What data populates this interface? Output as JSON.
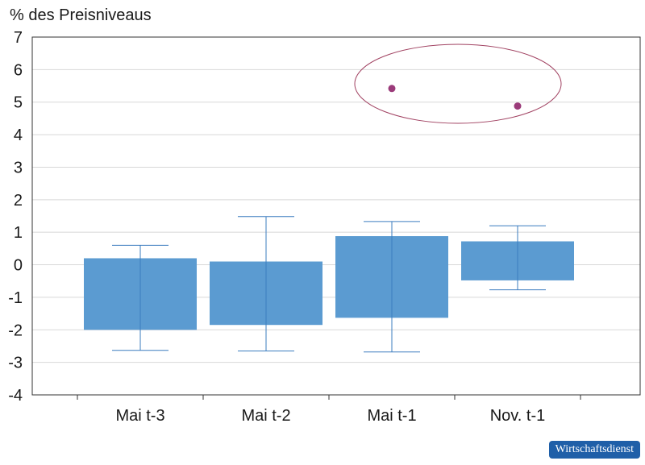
{
  "chart_data": {
    "type": "bar",
    "ylabel": "% des Preisniveaus",
    "ylim": [
      -4,
      7
    ],
    "yticks": [
      7,
      6,
      5,
      4,
      3,
      2,
      1,
      0,
      -1,
      -2,
      -3,
      -4
    ],
    "ytick_labels": [
      "7",
      "6",
      "5",
      "4",
      "3",
      "2",
      "1",
      "0",
      "-1",
      "-2",
      "-3",
      "-4"
    ],
    "grid": true,
    "categories": [
      "Mai t-3",
      "Mai t-2",
      "Mai t-1",
      "Nov. t-1"
    ],
    "bars": [
      {
        "low": -2.0,
        "high": 0.2,
        "whisker_low": -2.63,
        "whisker_high": 0.6
      },
      {
        "low": -1.85,
        "high": 0.1,
        "whisker_low": -2.65,
        "whisker_high": 1.48
      },
      {
        "low": -1.63,
        "high": 0.88,
        "whisker_low": -2.68,
        "whisker_high": 1.33
      },
      {
        "low": -0.48,
        "high": 0.72,
        "whisker_low": -0.77,
        "whisker_high": 1.2
      }
    ],
    "outliers": [
      {
        "category": "Mai t-1",
        "value": 5.42
      },
      {
        "category": "Nov. t-1",
        "value": 4.88
      }
    ],
    "colors": {
      "bar": "#5b9bd1",
      "whisker": "#3b7cbf",
      "outlier": "#9b3b7a",
      "ellipse": "#a04060",
      "grid": "#d8d8d8",
      "axis": "#333333"
    }
  },
  "watermark": "Wirtschaftsdienst"
}
